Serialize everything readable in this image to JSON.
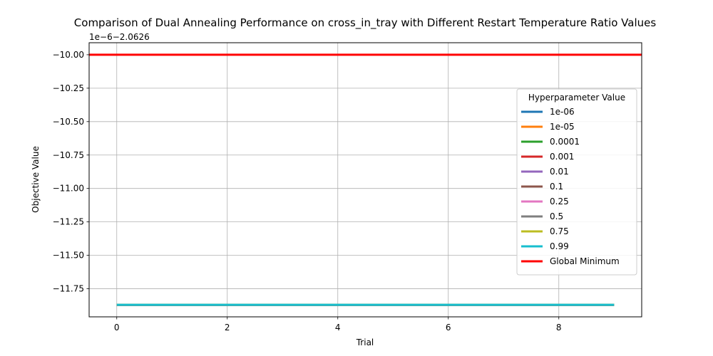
{
  "chart_data": {
    "type": "line",
    "title": "Comparison of Dual Annealing Performance on cross_in_tray with Different Restart Temperature Ratio Values",
    "xlabel": "Trial",
    "ylabel": "Objective Value",
    "offset_text": "1e−6−2.0626",
    "xlim": [
      -0.5,
      9.5
    ],
    "ylim": [
      -11.96,
      -9.91
    ],
    "xticks": [
      0,
      2,
      4,
      6,
      8
    ],
    "yticks": [
      -10.0,
      -10.25,
      -10.5,
      -10.75,
      -11.0,
      -11.25,
      -11.5,
      -11.75
    ],
    "ytick_labels": [
      "−10.00",
      "−10.25",
      "−10.50",
      "−10.75",
      "−11.00",
      "−11.25",
      "−11.50",
      "−11.75"
    ],
    "x": [
      0,
      1,
      2,
      3,
      4,
      5,
      6,
      7,
      8,
      9
    ],
    "series": [
      {
        "name": "1e-06",
        "color": "#1f77b4",
        "values": [
          -11.87,
          -11.87,
          -11.87,
          -11.87,
          -11.87,
          -11.87,
          -11.87,
          -11.87,
          -11.87,
          -11.87
        ]
      },
      {
        "name": "1e-05",
        "color": "#ff7f0e",
        "values": [
          -11.87,
          -11.87,
          -11.87,
          -11.87,
          -11.87,
          -11.87,
          -11.87,
          -11.87,
          -11.87,
          -11.87
        ]
      },
      {
        "name": "0.0001",
        "color": "#2ca02c",
        "values": [
          -11.87,
          -11.87,
          -11.87,
          -11.87,
          -11.87,
          -11.87,
          -11.87,
          -11.87,
          -11.87,
          -11.87
        ]
      },
      {
        "name": "0.001",
        "color": "#d62728",
        "values": [
          -11.87,
          -11.87,
          -11.87,
          -11.87,
          -11.87,
          -11.87,
          -11.87,
          -11.87,
          -11.87,
          -11.87
        ]
      },
      {
        "name": "0.01",
        "color": "#9467bd",
        "values": [
          -11.87,
          -11.87,
          -11.87,
          -11.87,
          -11.87,
          -11.87,
          -11.87,
          -11.87,
          -11.87,
          -11.87
        ]
      },
      {
        "name": "0.1",
        "color": "#8c564b",
        "values": [
          -11.87,
          -11.87,
          -11.87,
          -11.87,
          -11.87,
          -11.87,
          -11.87,
          -11.87,
          -11.87,
          -11.87
        ]
      },
      {
        "name": "0.25",
        "color": "#e377c2",
        "values": [
          -11.87,
          -11.87,
          -11.87,
          -11.87,
          -11.87,
          -11.87,
          -11.87,
          -11.87,
          -11.87,
          -11.87
        ]
      },
      {
        "name": "0.5",
        "color": "#7f7f7f",
        "values": [
          -11.87,
          -11.87,
          -11.87,
          -11.87,
          -11.87,
          -11.87,
          -11.87,
          -11.87,
          -11.87,
          -11.87
        ]
      },
      {
        "name": "0.75",
        "color": "#bcbd22",
        "values": [
          -11.87,
          -11.87,
          -11.87,
          -11.87,
          -11.87,
          -11.87,
          -11.87,
          -11.87,
          -11.87,
          -11.87
        ]
      },
      {
        "name": "0.99",
        "color": "#17becf",
        "values": [
          -11.87,
          -11.87,
          -11.87,
          -11.87,
          -11.87,
          -11.87,
          -11.87,
          -11.87,
          -11.87,
          -11.87
        ]
      }
    ],
    "global_minimum": {
      "name": "Global Minimum",
      "color": "#ff0000",
      "value": -10.0
    },
    "legend": {
      "title": "Hyperparameter Value",
      "placement": "right"
    },
    "grid": true
  }
}
